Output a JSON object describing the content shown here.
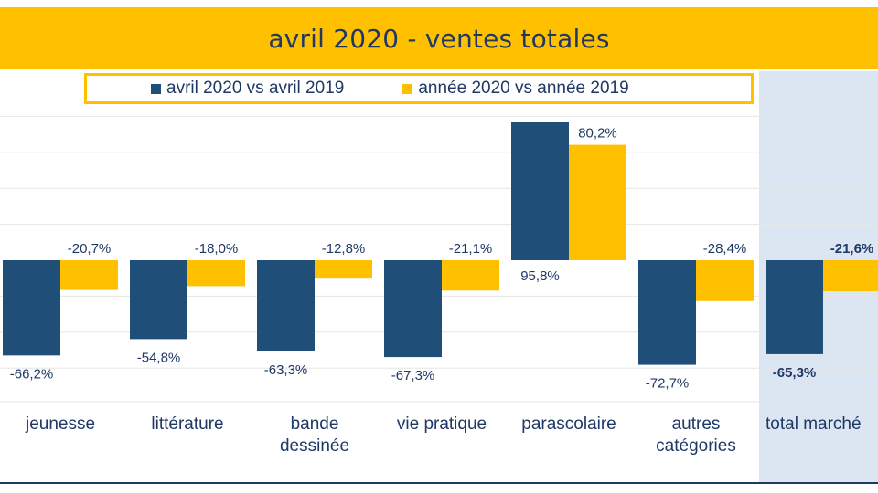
{
  "colors": {
    "series1": "#1f4e79",
    "series2": "#ffc000",
    "text": "#1f3864",
    "highlight_bg": "#dce6f2",
    "grid": "#e6e6e6"
  },
  "chart_data": {
    "type": "bar",
    "title": "avril 2020 - ventes totales",
    "xlabel": "",
    "ylabel": "",
    "ylim": [
      -100,
      100
    ],
    "legend_position": "top",
    "categories": [
      "jeunesse",
      "littérature",
      "bande dessinée",
      "vie pratique",
      "parascolaire",
      "autres catégories",
      "total marché"
    ],
    "category_lines": [
      [
        "jeunesse"
      ],
      [
        "littérature"
      ],
      [
        "bande",
        "dessinée"
      ],
      [
        "vie pratique"
      ],
      [
        "parascolaire"
      ],
      [
        "autres",
        "catégories"
      ],
      [
        "total marché"
      ]
    ],
    "series": [
      {
        "name": "avril 2020 vs avril 2019",
        "values": [
          -66.2,
          -54.8,
          -63.3,
          -67.3,
          95.8,
          -72.7,
          -65.3
        ],
        "labels": [
          "-66,2%",
          "-54,8%",
          "-63,3%",
          "-67,3%",
          "95,8%",
          "-72,7%",
          "-65,3%"
        ]
      },
      {
        "name": "année 2020 vs année 2019",
        "values": [
          -20.7,
          -18.0,
          -12.8,
          -21.1,
          80.2,
          -28.4,
          -21.6
        ],
        "labels": [
          "-20,7%",
          "-18,0%",
          "-12,8%",
          "-21,1%",
          "80,2%",
          "-28,4%",
          "-21,6%"
        ]
      }
    ],
    "highlighted_category": "total marché"
  }
}
